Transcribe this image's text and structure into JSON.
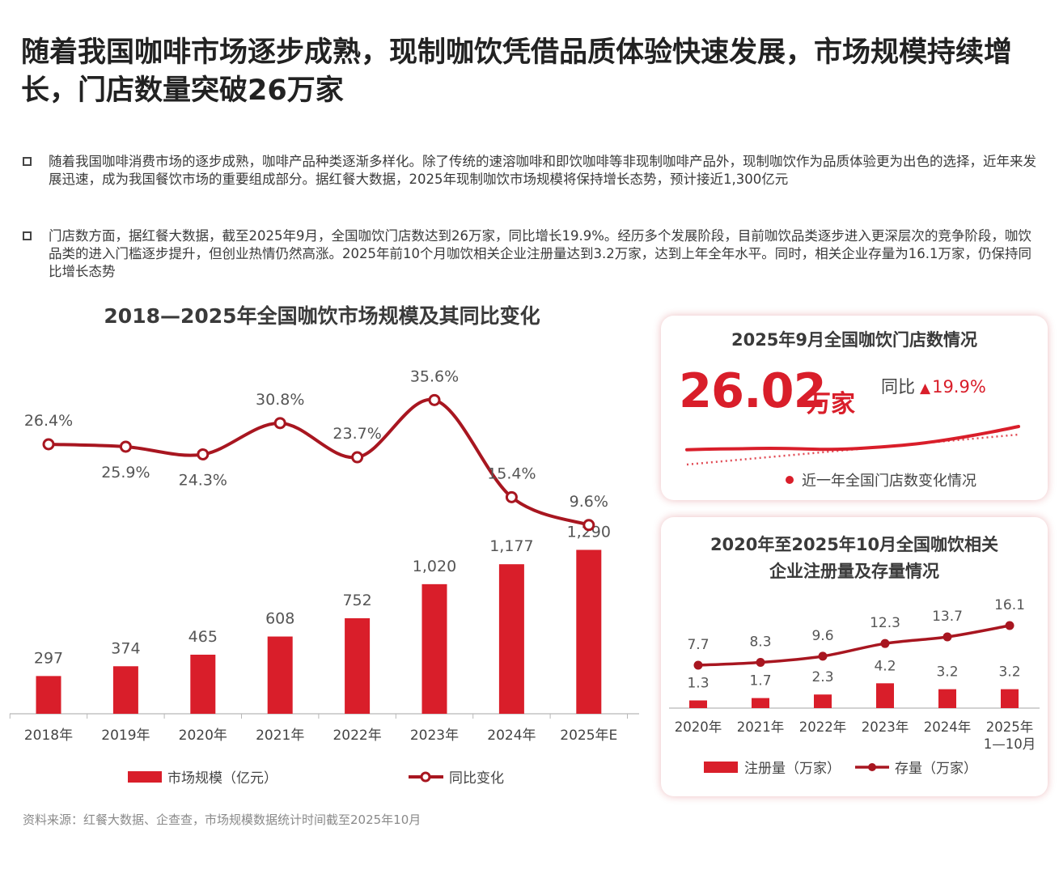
{
  "headline": "随着我国咖啡市场逐步成熟，现制咖饮凭借品质体验快速发展，市场规模持续增长，门店数量突破26万家",
  "paragraphs": [
    "随着我国咖啡消费市场的逐步成熟，咖啡产品种类逐渐多样化。除了传统的速溶咖啡和即饮咖啡等非现制咖啡产品外，现制咖饮作为品质体验更为出色的选择，近年来发展迅速，成为我国餐饮市场的重要组成部分。据红餐大数据，2025年现制咖饮市场规模将保持增长态势，预计接近1,300亿元",
    "门店数方面，据红餐大数据，截至2025年9月，全国咖饮门店数达到26万家，同比增长19.9%。经历多个发展阶段，目前咖饮品类逐步进入更深层次的竞争阶段，咖饮品类的进入门槛逐步提升，但创业热情仍然高涨。2025年前10个月咖饮相关企业注册量达到3.2万家，达到上年全年水平。同时，相关企业存量为16.1万家，仍保持同比增长态势"
  ],
  "colors": {
    "accent": "#d91e2a",
    "line": "#a81620",
    "text": "#3a3a3a"
  },
  "store_card": {
    "title": "2025年9月全国咖饮门店数情况",
    "big_number": "26.02",
    "unit": "万家",
    "yoy_label": "同比",
    "yoy_arrow": "▲",
    "yoy_value": "19.9%",
    "legend": "近一年全国门店数变化情况"
  },
  "source": "资料来源：红餐大数据、企查查，市场规模数据统计时间截至2025年10月",
  "chart_data": [
    {
      "type": "bar",
      "title": "2018—2025年全国咖饮市场规模及其同比变化",
      "categories": [
        "2018年",
        "2019年",
        "2020年",
        "2021年",
        "2022年",
        "2023年",
        "2024年",
        "2025年E"
      ],
      "series": [
        {
          "name": "市场规模（亿元）",
          "type": "bar",
          "values": [
            297,
            374,
            465,
            608,
            752,
            1020,
            1177,
            1290
          ],
          "labels": [
            "297",
            "374",
            "465",
            "608",
            "752",
            "1,020",
            "1,177",
            "1,290"
          ]
        },
        {
          "name": "同比变化",
          "type": "line",
          "values": [
            26.4,
            25.9,
            24.3,
            30.8,
            23.7,
            35.6,
            15.4,
            9.6
          ],
          "labels": [
            "26.4%",
            "25.9%",
            "24.3%",
            "30.8%",
            "23.7%",
            "35.6%",
            "15.4%",
            "9.6%"
          ]
        }
      ],
      "legend_position": "bottom"
    },
    {
      "type": "line",
      "title": "近一年全国门店数变化情况",
      "series": [
        {
          "name": "近一年全国门店数变化情况",
          "values": [
            0.3,
            0.32,
            0.33,
            0.34,
            0.33,
            0.31,
            0.33,
            0.38,
            0.45,
            0.55,
            0.68,
            0.83,
            1.0
          ]
        }
      ],
      "trend_line": "dotted",
      "axes": "hidden"
    },
    {
      "type": "bar",
      "title": "2020年至2025年10月全国咖饮相关企业注册量及存量情况",
      "categories": [
        "2020年",
        "2021年",
        "2022年",
        "2023年",
        "2024年",
        "2025年\n1—10月"
      ],
      "series": [
        {
          "name": "注册量（万家）",
          "type": "bar",
          "values": [
            1.3,
            1.7,
            2.3,
            4.2,
            3.2,
            3.2
          ]
        },
        {
          "name": "存量（万家）",
          "type": "line",
          "values": [
            7.7,
            8.3,
            9.6,
            12.3,
            13.7,
            16.1
          ]
        }
      ],
      "legend_position": "bottom"
    }
  ]
}
